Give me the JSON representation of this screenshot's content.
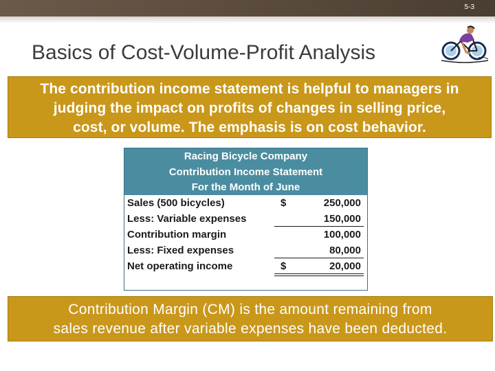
{
  "slide": {
    "number": "5-3",
    "title": "Basics of Cost-Volume-Profit Analysis"
  },
  "callout_top": {
    "lines": [
      "The contribution income statement is helpful to managers in",
      "judging the impact on profits of changes in selling price,",
      "cost, or volume. The emphasis is on cost behavior."
    ]
  },
  "statement": {
    "company": "Racing Bicycle Company",
    "name": "Contribution Income Statement",
    "period": "For the Month of June",
    "rows": [
      {
        "label": "Sales (500 bicycles)",
        "dollar": "$",
        "amount": "250,000"
      },
      {
        "label": "Less: Variable expenses",
        "dollar": "",
        "amount": "150,000"
      },
      {
        "label": "Contribution margin",
        "dollar": "",
        "amount": "100,000"
      },
      {
        "label": "Less: Fixed expenses",
        "dollar": "",
        "amount": "80,000"
      },
      {
        "label": "Net operating income",
        "dollar": "$",
        "amount": "20,000"
      }
    ]
  },
  "callout_bottom": {
    "lines": [
      "Contribution Margin (CM) is the amount remaining from",
      "sales revenue after variable expenses have been deducted."
    ]
  },
  "icons": {
    "bike": "cyclist-clipart-icon"
  }
}
